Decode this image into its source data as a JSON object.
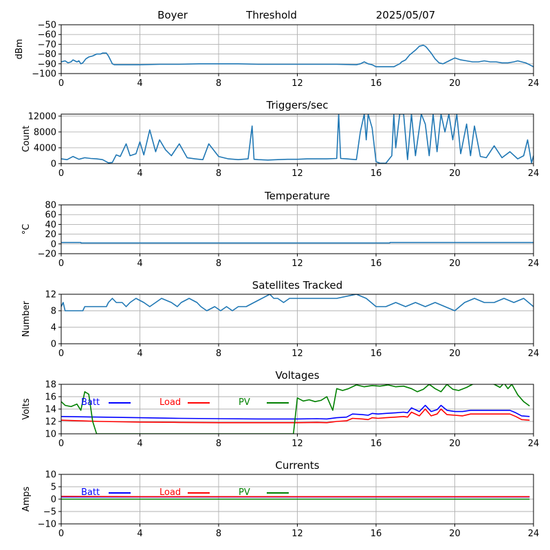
{
  "header": {
    "station": "Boyer",
    "mode": "Threshold",
    "date": "2025/05/07"
  },
  "colors": {
    "default": "#1f77b4",
    "batt": "#0000ff",
    "load": "#ff0000",
    "pv": "#008000",
    "grid": "#b0b0b0"
  },
  "x_axis": {
    "range": [
      0,
      24
    ],
    "ticks": [
      0,
      4,
      8,
      12,
      16,
      20,
      24
    ],
    "tick_labels": [
      "0",
      "4",
      "8",
      "12",
      "16",
      "20",
      "24"
    ]
  },
  "chart_data": [
    {
      "id": "noise",
      "type": "line",
      "title": "",
      "ylabel": "dBm",
      "ylim": [
        -100,
        -50
      ],
      "yticks": [
        -100,
        -90,
        -80,
        -70,
        -60,
        -50
      ],
      "ytick_labels": [
        "−100",
        "−90",
        "−80",
        "−70",
        "−60",
        "−50"
      ],
      "grid": true,
      "series": [
        {
          "color": "#1f77b4",
          "x": [
            0,
            0.2,
            0.35,
            0.5,
            0.6,
            0.8,
            0.9,
            1.0,
            1.1,
            1.25,
            1.4,
            1.6,
            1.8,
            2.0,
            2.1,
            2.3,
            2.4,
            2.5,
            2.6,
            2.7,
            3,
            4,
            5,
            6,
            7,
            8,
            9,
            10,
            11,
            12,
            13,
            14,
            15,
            15.2,
            15.4,
            15.6,
            15.8,
            16,
            16.3,
            16.6,
            16.9,
            17.1,
            17.2,
            17.3,
            17.5,
            17.7,
            18.0,
            18.2,
            18.4,
            18.5,
            18.6,
            18.8,
            19.0,
            19.2,
            19.4,
            19.6,
            19.8,
            20.0,
            20.3,
            20.6,
            20.9,
            21.2,
            21.5,
            21.8,
            22.1,
            22.4,
            22.7,
            23.0,
            23.2,
            23.4,
            23.6,
            23.8,
            24
          ],
          "y": [
            -88,
            -87,
            -89,
            -88,
            -86,
            -88,
            -87,
            -90,
            -89,
            -85,
            -83,
            -82,
            -80,
            -80,
            -79,
            -79,
            -82,
            -86,
            -90,
            -91,
            -91,
            -91,
            -90.5,
            -90.5,
            -90,
            -90,
            -90,
            -90.5,
            -90.5,
            -90.5,
            -90.5,
            -90.5,
            -91,
            -90,
            -88,
            -90,
            -91,
            -93,
            -93,
            -93,
            -93,
            -91,
            -90,
            -88,
            -86,
            -81,
            -76,
            -72,
            -71,
            -72,
            -74,
            -79,
            -85,
            -89,
            -90,
            -88,
            -86,
            -84,
            -86,
            -87,
            -88,
            -88,
            -87,
            -88,
            -88,
            -89,
            -89,
            -88,
            -87,
            -88,
            -89,
            -91,
            -93
          ]
        }
      ]
    },
    {
      "id": "triggers",
      "type": "line",
      "title": "Triggers/sec",
      "ylabel": "Count",
      "ylim": [
        0,
        12500
      ],
      "yticks": [
        0,
        4000,
        8000,
        12000
      ],
      "ytick_labels": [
        "0",
        "4000",
        "8000",
        "12000"
      ],
      "grid": true,
      "series": [
        {
          "color": "#1f77b4",
          "x": [
            0,
            0.3,
            0.6,
            0.9,
            1.2,
            1.5,
            1.8,
            2.1,
            2.4,
            2.6,
            2.8,
            3.0,
            3.3,
            3.5,
            3.8,
            4.0,
            4.2,
            4.5,
            4.8,
            5.0,
            5.3,
            5.6,
            6.0,
            6.4,
            6.8,
            7.0,
            7.2,
            7.5,
            8.0,
            8.5,
            9.0,
            9.5,
            9.7,
            9.8,
            10.0,
            10.5,
            11.0,
            11.5,
            12.0,
            12.5,
            13.0,
            13.5,
            14.0,
            14.1,
            14.2,
            14.5,
            15.0,
            15.2,
            15.4,
            15.5,
            15.6,
            15.8,
            16.0,
            16.2,
            16.5,
            16.8,
            16.9,
            17.0,
            17.2,
            17.4,
            17.6,
            17.8,
            18.0,
            18.3,
            18.5,
            18.7,
            18.9,
            19.1,
            19.3,
            19.5,
            19.7,
            19.9,
            20.1,
            20.3,
            20.6,
            20.8,
            21.0,
            21.3,
            21.6,
            22.0,
            22.4,
            22.8,
            23.2,
            23.5,
            23.7,
            23.9,
            24
          ],
          "y": [
            1200,
            1000,
            1800,
            1100,
            1500,
            1300,
            1200,
            1000,
            200,
            300,
            2200,
            1800,
            5000,
            2000,
            2500,
            5500,
            2200,
            8500,
            3000,
            6000,
            3500,
            2000,
            5000,
            1500,
            1200,
            1100,
            1000,
            5000,
            1800,
            1200,
            1000,
            1200,
            9500,
            1100,
            1000,
            900,
            1000,
            1100,
            1100,
            1200,
            1200,
            1200,
            1300,
            12500,
            1300,
            1200,
            1000,
            8000,
            12500,
            6000,
            12500,
            9000,
            500,
            100,
            100,
            2000,
            12500,
            4000,
            12500,
            12500,
            1000,
            12500,
            2000,
            12500,
            10000,
            2000,
            12500,
            3000,
            12500,
            8000,
            12500,
            6000,
            12500,
            2500,
            10000,
            2000,
            9500,
            1800,
            1500,
            4500,
            1500,
            3000,
            1200,
            2000,
            6000,
            200,
            2000
          ]
        }
      ]
    },
    {
      "id": "temperature",
      "type": "line",
      "title": "Temperature",
      "ylabel": "°C",
      "ylim": [
        -20,
        80
      ],
      "yticks": [
        -20,
        0,
        20,
        40,
        60,
        80
      ],
      "ytick_labels": [
        "−20",
        "0",
        "20",
        "40",
        "60",
        "80"
      ],
      "grid": true,
      "series": [
        {
          "color": "#1f77b4",
          "x": [
            0,
            1.0,
            1.01,
            16.7,
            16.71,
            24
          ],
          "y": [
            3,
            3,
            2,
            2,
            3,
            3
          ]
        }
      ]
    },
    {
      "id": "satellites",
      "type": "line",
      "title": "Satellites Tracked",
      "ylabel": "Number",
      "ylim": [
        0,
        12
      ],
      "yticks": [
        0,
        4,
        8,
        12
      ],
      "ytick_labels": [
        "0",
        "4",
        "8",
        "12"
      ],
      "grid": true,
      "series": [
        {
          "color": "#1f77b4",
          "x": [
            0,
            0.1,
            0.2,
            1.1,
            1.2,
            2.3,
            2.4,
            2.6,
            2.8,
            3.1,
            3.3,
            3.5,
            3.8,
            4.2,
            4.5,
            4.8,
            5.1,
            5.6,
            5.9,
            6.1,
            6.5,
            6.9,
            7.1,
            7.4,
            7.8,
            8.1,
            8.4,
            8.7,
            9.0,
            9.4,
            9.8,
            10.2,
            10.6,
            10.8,
            11.0,
            11.3,
            11.6,
            12.0,
            13.0,
            14.0,
            15.0,
            15.5,
            16.0,
            16.5,
            17.0,
            17.5,
            18.0,
            18.5,
            19.0,
            19.5,
            20.0,
            20.5,
            21.0,
            21.5,
            22.0,
            22.5,
            23.0,
            23.5,
            24
          ],
          "y": [
            9,
            10,
            8,
            8,
            9,
            9,
            10,
            11,
            10,
            10,
            9,
            10,
            11,
            10,
            9,
            10,
            11,
            10,
            9,
            10,
            11,
            10,
            9,
            8,
            9,
            8,
            9,
            8,
            9,
            9,
            10,
            11,
            12,
            11,
            11,
            10,
            11,
            11,
            11,
            11,
            12,
            11,
            9,
            9,
            10,
            9,
            10,
            9,
            10,
            9,
            8,
            10,
            11,
            10,
            10,
            11,
            10,
            11,
            9
          ]
        }
      ]
    },
    {
      "id": "voltages",
      "type": "line",
      "title": "Voltages",
      "ylabel": "Volts",
      "ylim": [
        10,
        18
      ],
      "yticks": [
        10,
        12,
        14,
        16,
        18
      ],
      "ytick_labels": [
        "10",
        "12",
        "14",
        "16",
        "18"
      ],
      "grid": true,
      "legend": {
        "placement": "top-left"
      },
      "series": [
        {
          "name": "Batt",
          "color": "#0000ff",
          "x": [
            0,
            2,
            4,
            6,
            8,
            10,
            12,
            13,
            13.5,
            14,
            14.5,
            14.8,
            15.3,
            15.6,
            15.8,
            16.1,
            16.5,
            17,
            17.4,
            17.6,
            17.8,
            18.2,
            18.5,
            18.8,
            19.1,
            19.3,
            19.6,
            20,
            20.4,
            20.8,
            21.2,
            21.6,
            22,
            22.4,
            22.8,
            23.1,
            23.4,
            23.8
          ],
          "y": [
            12.8,
            12.7,
            12.6,
            12.5,
            12.45,
            12.4,
            12.4,
            12.45,
            12.4,
            12.6,
            12.7,
            13.2,
            13.1,
            13.0,
            13.3,
            13.2,
            13.3,
            13.4,
            13.5,
            13.4,
            14.2,
            13.6,
            14.6,
            13.6,
            13.9,
            14.6,
            13.8,
            13.6,
            13.6,
            13.8,
            13.8,
            13.8,
            13.8,
            13.8,
            13.8,
            13.4,
            12.9,
            12.8
          ]
        },
        {
          "name": "Load",
          "color": "#ff0000",
          "x": [
            0,
            2,
            4,
            6,
            8,
            10,
            12,
            13,
            13.5,
            14,
            14.5,
            14.8,
            15.3,
            15.6,
            15.8,
            16.1,
            16.5,
            17,
            17.4,
            17.6,
            17.8,
            18.2,
            18.5,
            18.8,
            19.1,
            19.3,
            19.6,
            20,
            20.4,
            20.8,
            21.2,
            21.6,
            22,
            22.4,
            22.8,
            23.1,
            23.4,
            23.8
          ],
          "y": [
            12.2,
            12.0,
            11.9,
            11.85,
            11.8,
            11.8,
            11.8,
            11.85,
            11.8,
            12.0,
            12.1,
            12.5,
            12.4,
            12.3,
            12.6,
            12.5,
            12.6,
            12.7,
            12.8,
            12.7,
            13.5,
            12.9,
            14.0,
            12.9,
            13.2,
            14.0,
            13.1,
            13.0,
            12.9,
            13.2,
            13.2,
            13.2,
            13.2,
            13.2,
            13.2,
            12.8,
            12.3,
            12.2
          ]
        },
        {
          "name": "PV",
          "color": "#008000",
          "x": [
            0,
            0.2,
            0.5,
            0.8,
            1.0,
            1.2,
            1.4,
            1.6,
            1.8,
            11.8,
            12.0,
            12.3,
            12.6,
            12.9,
            13.2,
            13.5,
            13.8,
            14.0,
            14.3,
            14.6,
            15.0,
            15.4,
            15.8,
            16.2,
            16.6,
            17.0,
            17.4,
            17.8,
            18.1,
            18.4,
            18.7,
            19.0,
            19.3,
            19.6,
            19.9,
            20.2,
            20.6,
            20.9,
            21.2,
            21.6,
            22.0,
            22.3,
            22.5,
            22.7,
            22.9,
            23.2,
            23.5,
            23.8
          ],
          "y": [
            15.2,
            14.6,
            14.4,
            14.8,
            13.8,
            16.8,
            16.4,
            12.0,
            10.0,
            10.0,
            15.8,
            15.3,
            15.5,
            15.2,
            15.4,
            16.0,
            13.8,
            17.3,
            17.0,
            17.3,
            17.9,
            17.6,
            17.8,
            17.7,
            17.9,
            17.6,
            17.7,
            17.3,
            16.8,
            17.2,
            18.0,
            17.3,
            16.8,
            18.0,
            17.2,
            17.0,
            17.5,
            18.0,
            18.2,
            18.2,
            18.0,
            17.5,
            18.2,
            17.3,
            18.0,
            16.3,
            15.2,
            14.5
          ]
        }
      ]
    },
    {
      "id": "currents",
      "type": "line",
      "title": "Currents",
      "ylabel": "Amps",
      "ylim": [
        -10,
        10
      ],
      "yticks": [
        -10,
        -5,
        0,
        5,
        10
      ],
      "ytick_labels": [
        "−10",
        "−5",
        "0",
        "5",
        "10"
      ],
      "grid": true,
      "legend": {
        "placement": "top-left"
      },
      "series": [
        {
          "name": "Batt",
          "color": "#0000ff",
          "x": [
            0,
            4,
            8,
            12,
            16,
            20,
            23.8
          ],
          "y": [
            0.9,
            0.9,
            0.9,
            0.9,
            0.9,
            0.9,
            0.9
          ]
        },
        {
          "name": "Load",
          "color": "#ff0000",
          "x": [
            0,
            4,
            8,
            12,
            16,
            20,
            23.8
          ],
          "y": [
            1.1,
            1.0,
            1.0,
            1.0,
            1.0,
            1.0,
            1.0
          ]
        },
        {
          "name": "PV",
          "color": "#008000",
          "x": [
            0,
            4,
            8,
            12,
            16,
            20,
            23.8
          ],
          "y": [
            0,
            0,
            0,
            0,
            0,
            0,
            0
          ]
        }
      ]
    }
  ]
}
